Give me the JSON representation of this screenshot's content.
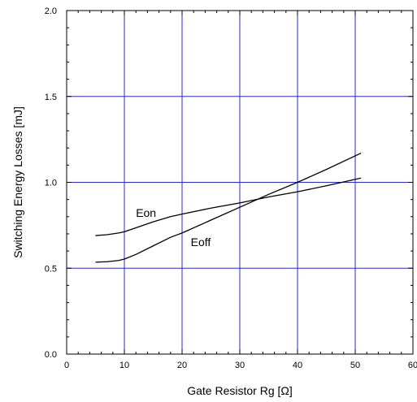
{
  "chart_data": {
    "type": "line",
    "title": "",
    "xlabel": "Gate Resistor Rg [Ω]",
    "ylabel": "Switching Energy Losses [mJ]",
    "xlim": [
      0,
      60
    ],
    "ylim": [
      0.0,
      2.0
    ],
    "xticks": [
      0,
      10,
      20,
      30,
      40,
      50,
      60
    ],
    "xtick_labels": [
      "0",
      "10",
      "20",
      "30",
      "40",
      "50",
      "60"
    ],
    "yticks": [
      0.0,
      0.5,
      1.0,
      1.5,
      2.0
    ],
    "ytick_labels": [
      "0.0",
      "0.5",
      "1.0",
      "1.5",
      "2.0"
    ],
    "grid": true,
    "grid_color": "#2a2ad6",
    "line_color": "#000000",
    "series": [
      {
        "name": "Eon",
        "x": [
          5,
          7,
          9,
          10,
          12,
          15,
          18,
          20,
          25,
          30,
          35,
          40,
          45,
          51
        ],
        "y": [
          0.69,
          0.695,
          0.705,
          0.712,
          0.735,
          0.77,
          0.8,
          0.815,
          0.85,
          0.88,
          0.915,
          0.945,
          0.98,
          1.025
        ]
      },
      {
        "name": "Eoff",
        "x": [
          5,
          7,
          9,
          10,
          12,
          15,
          18,
          20,
          25,
          30,
          35,
          40,
          45,
          51
        ],
        "y": [
          0.535,
          0.538,
          0.545,
          0.553,
          0.58,
          0.63,
          0.68,
          0.705,
          0.78,
          0.855,
          0.93,
          1.0,
          1.075,
          1.17
        ]
      }
    ],
    "annotations": [
      {
        "text": "Eon",
        "x": 12,
        "y": 0.8
      },
      {
        "text": "Eoff",
        "x": 21.5,
        "y": 0.63
      }
    ]
  }
}
